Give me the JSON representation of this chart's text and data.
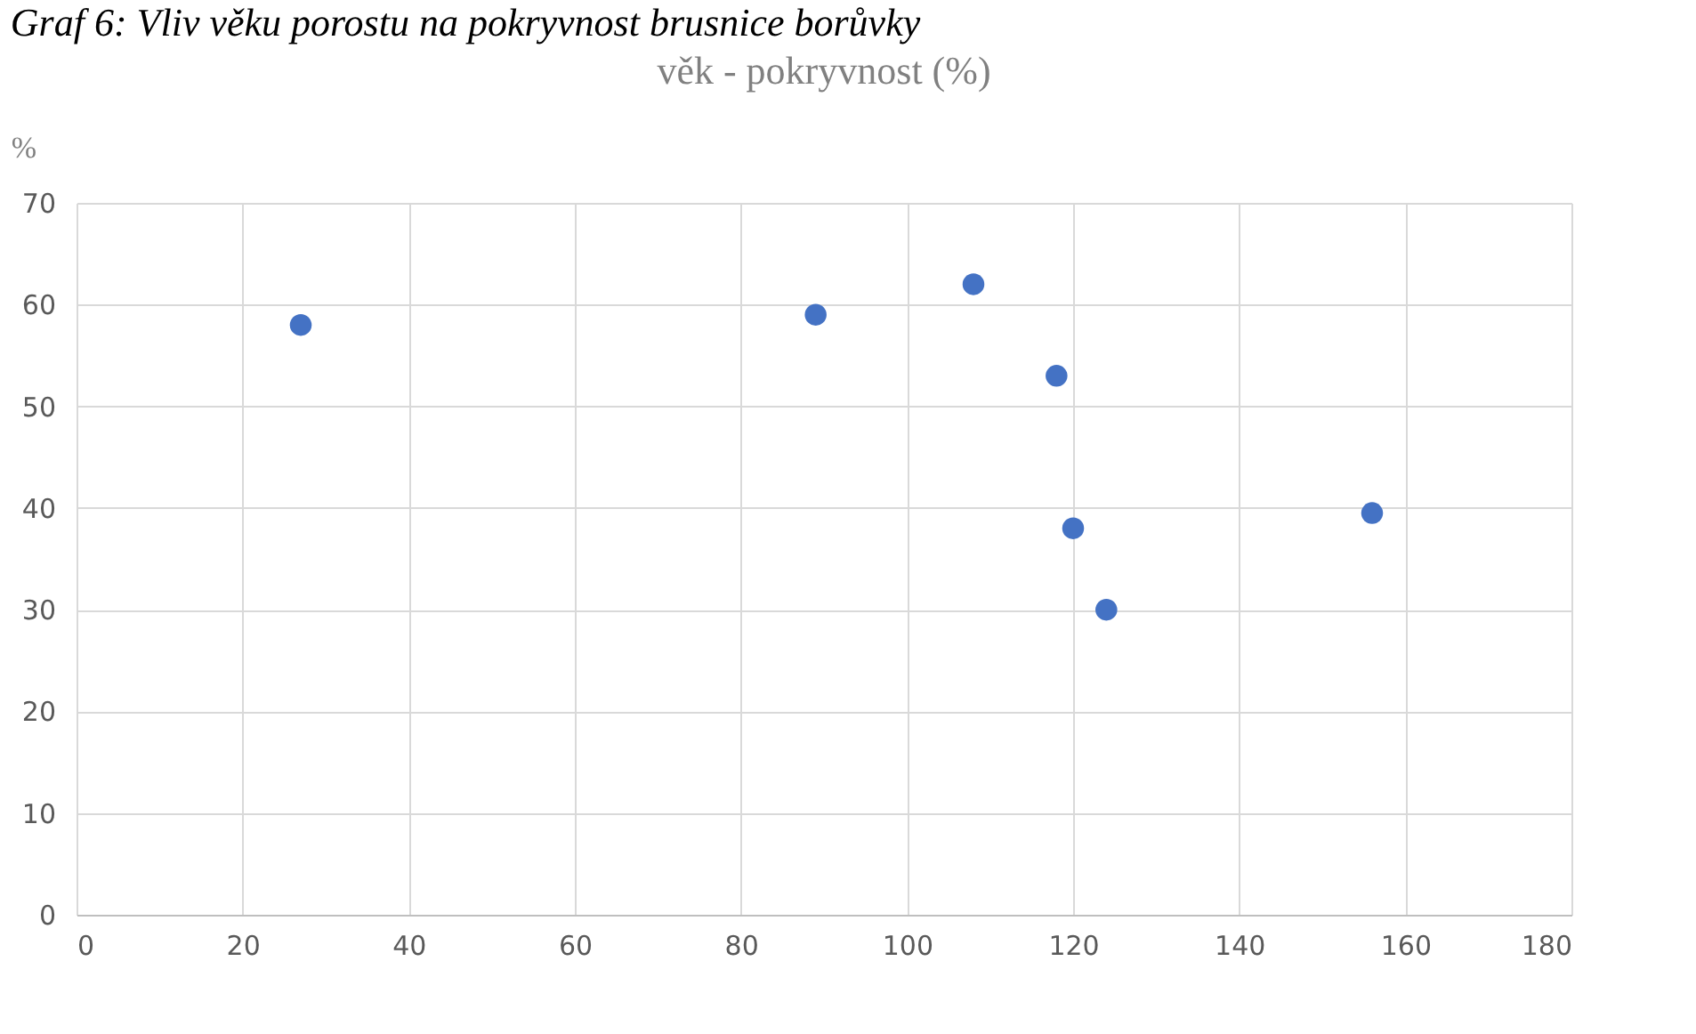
{
  "chart_data": {
    "type": "scatter",
    "title": "věk - pokryvnost (%)",
    "ylabel": "%",
    "annotations": [
      "Graf 6: Vliv věku porostu na pokryvnost brusnice borůvky"
    ],
    "x": [
      27,
      89,
      108,
      118,
      120,
      124,
      156
    ],
    "series": [
      {
        "color": "#4472c4",
        "values": [
          58,
          59,
          62,
          53,
          38,
          30,
          39.5
        ]
      }
    ],
    "xlim": [
      0,
      180
    ],
    "xticks": [
      0,
      20,
      40,
      60,
      80,
      100,
      120,
      140,
      160,
      180
    ],
    "ylim": [
      0,
      70
    ],
    "yticks": [
      0,
      10,
      20,
      30,
      40,
      50,
      60,
      70
    ],
    "grid": true,
    "marker": "circle",
    "legend": false
  }
}
